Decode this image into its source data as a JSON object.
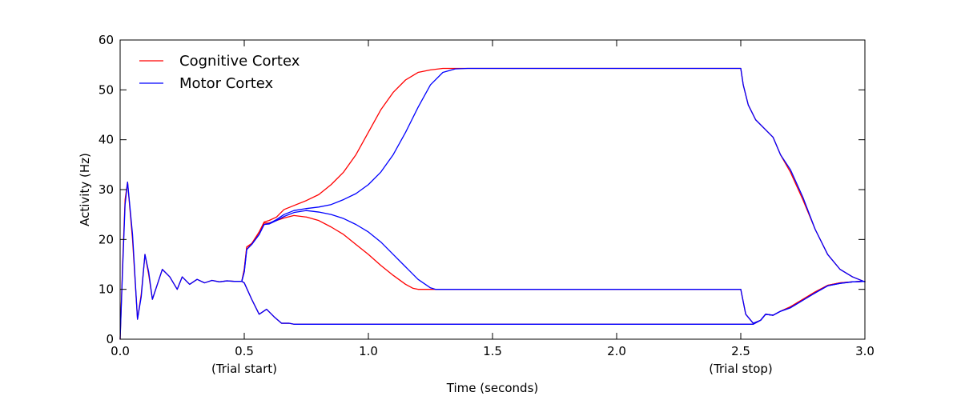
{
  "chart_data": {
    "type": "line",
    "title": "",
    "xlabel": "Time (seconds)",
    "ylabel": "Activity (Hz)",
    "xlim": [
      0,
      3
    ],
    "ylim": [
      0,
      60
    ],
    "xticks": [
      0,
      0.5,
      1,
      1.5,
      2,
      2.5,
      3
    ],
    "xtick_labels": [
      "0.0",
      "0.5",
      "1.0",
      "1.5",
      "2.0",
      "2.5",
      "3.0"
    ],
    "yticks": [
      0,
      10,
      20,
      30,
      40,
      50,
      60
    ],
    "ytick_labels": [
      "0",
      "10",
      "20",
      "30",
      "40",
      "50",
      "60"
    ],
    "grid": false,
    "legend_position": "top-left",
    "annotations": [
      {
        "text": "(Trial start)",
        "x": 0.5
      },
      {
        "text": "(Trial stop)",
        "x": 2.5
      }
    ],
    "series": [
      {
        "name": "Cognitive Cortex",
        "color": "#ff0000",
        "show_in_legend": true,
        "x": [
          0,
          0.01,
          0.02,
          0.03,
          0.05,
          0.07,
          0.085,
          0.1,
          0.115,
          0.13,
          0.15,
          0.17,
          0.2,
          0.23,
          0.25,
          0.28,
          0.31,
          0.34,
          0.37,
          0.4,
          0.43,
          0.46,
          0.49,
          0.5,
          0.51,
          0.53,
          0.56,
          0.58,
          0.6,
          0.63,
          0.66,
          0.7,
          0.75,
          0.8,
          0.85,
          0.9,
          0.95,
          1.0,
          1.05,
          1.1,
          1.15,
          1.2,
          1.25,
          1.3,
          1.35,
          1.4,
          1.5,
          2.0,
          2.49,
          2.5,
          2.51,
          2.53,
          2.56,
          2.6,
          2.63,
          2.66,
          2.7,
          2.75,
          2.8,
          2.85,
          2.9,
          2.95,
          3.0
        ],
        "y": [
          0,
          15,
          28,
          31.5,
          20,
          4,
          9,
          17,
          13,
          8,
          11,
          14,
          12.5,
          10,
          12.5,
          11,
          12,
          11.3,
          11.8,
          11.5,
          11.7,
          11.6,
          11.6,
          14,
          18.5,
          19.2,
          21.5,
          23.5,
          23.8,
          24.5,
          26,
          26.8,
          27.8,
          29,
          31,
          33.5,
          37,
          41.5,
          46,
          49.5,
          52,
          53.5,
          54,
          54.3,
          54.3,
          54.3,
          54.3,
          54.3,
          54.3,
          54.3,
          51,
          47,
          44,
          42,
          40.5,
          37,
          33.5,
          28,
          22,
          17,
          14,
          12.5,
          11.5
        ]
      },
      {
        "name": "",
        "color": "#ff0000",
        "show_in_legend": false,
        "x": [
          0.49,
          0.5,
          0.51,
          0.53,
          0.56,
          0.58,
          0.6,
          0.63,
          0.66,
          0.7,
          0.75,
          0.8,
          0.85,
          0.9,
          0.95,
          1.0,
          1.05,
          1.1,
          1.15,
          1.18,
          1.2,
          1.25,
          1.5,
          2.0,
          2.49,
          2.5,
          2.52,
          2.55,
          2.58,
          2.6,
          2.63,
          2.66,
          2.7,
          2.75,
          2.8,
          2.85,
          2.9,
          2.95,
          3.0
        ],
        "y": [
          11.6,
          14,
          18.5,
          19,
          21.5,
          23.3,
          23.3,
          23.8,
          24.3,
          24.8,
          24.5,
          23.8,
          22.5,
          21,
          19,
          17,
          14.8,
          12.8,
          11,
          10.2,
          10,
          10,
          10,
          10,
          10,
          10,
          5,
          3.2,
          3.8,
          5,
          4.8,
          5.6,
          6.5,
          8,
          9.5,
          10.8,
          11.3,
          11.5,
          11.6
        ]
      },
      {
        "name": "",
        "color": "#ff0000",
        "show_in_legend": false,
        "x": [
          0.49,
          0.5,
          0.53,
          0.56,
          0.59,
          0.62,
          0.65,
          0.68,
          0.7,
          0.75,
          1.0,
          1.5,
          2.0,
          2.49,
          2.5,
          2.52,
          2.55,
          2.58,
          2.6,
          2.63,
          2.66,
          2.7,
          2.75,
          2.8,
          2.85,
          2.9,
          2.95,
          3.0
        ],
        "y": [
          11.6,
          11.3,
          8,
          5,
          6,
          4.5,
          3.2,
          3.2,
          3,
          3,
          3,
          3,
          3,
          3,
          3,
          3,
          3,
          3.8,
          5,
          4.8,
          5.6,
          6.5,
          8,
          9.5,
          10.8,
          11.3,
          11.5,
          11.6
        ]
      },
      {
        "name": "Motor Cortex",
        "color": "#0000ff",
        "show_in_legend": true,
        "x": [
          0,
          0.01,
          0.02,
          0.03,
          0.05,
          0.07,
          0.085,
          0.1,
          0.115,
          0.13,
          0.15,
          0.17,
          0.2,
          0.23,
          0.25,
          0.28,
          0.31,
          0.34,
          0.37,
          0.4,
          0.43,
          0.46,
          0.49,
          0.5,
          0.51,
          0.53,
          0.56,
          0.58,
          0.6,
          0.63,
          0.66,
          0.7,
          0.75,
          0.8,
          0.85,
          0.9,
          0.95,
          1.0,
          1.05,
          1.1,
          1.15,
          1.2,
          1.25,
          1.3,
          1.35,
          1.4,
          1.5,
          2.0,
          2.49,
          2.5,
          2.51,
          2.53,
          2.56,
          2.6,
          2.63,
          2.66,
          2.7,
          2.75,
          2.8,
          2.85,
          2.9,
          2.95,
          3.0
        ],
        "y": [
          0,
          14,
          27,
          31.5,
          21,
          4,
          8.5,
          17,
          13.5,
          8,
          11,
          14,
          12.5,
          10,
          12.5,
          11,
          12,
          11.3,
          11.8,
          11.5,
          11.7,
          11.6,
          11.6,
          13.5,
          18,
          19,
          21,
          23,
          23.2,
          24,
          25,
          25.8,
          26.2,
          26.5,
          27,
          28,
          29.2,
          31,
          33.5,
          37,
          41.5,
          46.5,
          51,
          53.5,
          54.2,
          54.3,
          54.3,
          54.3,
          54.3,
          54.3,
          51,
          47,
          44,
          42,
          40.5,
          37,
          34,
          28.5,
          22,
          17,
          14,
          12.5,
          11.5
        ]
      },
      {
        "name": "",
        "color": "#0000ff",
        "show_in_legend": false,
        "x": [
          0.49,
          0.5,
          0.51,
          0.53,
          0.56,
          0.58,
          0.6,
          0.63,
          0.66,
          0.7,
          0.75,
          0.8,
          0.85,
          0.9,
          0.95,
          1.0,
          1.05,
          1.1,
          1.15,
          1.2,
          1.25,
          1.27,
          1.3,
          1.5,
          2.0,
          2.49,
          2.5,
          2.52,
          2.55,
          2.58,
          2.6,
          2.63,
          2.66,
          2.7,
          2.75,
          2.8,
          2.85,
          2.9,
          2.95,
          3.0
        ],
        "y": [
          11.6,
          13.5,
          18,
          19,
          21,
          23,
          23.1,
          23.8,
          24.6,
          25.4,
          25.8,
          25.5,
          25,
          24.2,
          23,
          21.5,
          19.5,
          17,
          14.5,
          12,
          10.3,
          10,
          10,
          10,
          10,
          10,
          10,
          5,
          3.2,
          3.8,
          5,
          4.8,
          5.6,
          6.3,
          7.8,
          9.3,
          10.7,
          11.2,
          11.5,
          11.6
        ]
      },
      {
        "name": "",
        "color": "#0000ff",
        "show_in_legend": false,
        "x": [
          0.49,
          0.5,
          0.53,
          0.56,
          0.59,
          0.62,
          0.65,
          0.68,
          0.7,
          0.75,
          1.0,
          1.5,
          2.0,
          2.49,
          2.5,
          2.52,
          2.55,
          2.58,
          2.6,
          2.63,
          2.66,
          2.7,
          2.75,
          2.8,
          2.85,
          2.9,
          2.95,
          3.0
        ],
        "y": [
          11.6,
          11.3,
          8,
          5,
          6,
          4.5,
          3.2,
          3.2,
          3,
          3,
          3,
          3,
          3,
          3,
          3,
          3,
          3,
          3.8,
          5,
          4.8,
          5.6,
          6.3,
          7.8,
          9.3,
          10.7,
          11.2,
          11.5,
          11.6
        ]
      }
    ]
  }
}
